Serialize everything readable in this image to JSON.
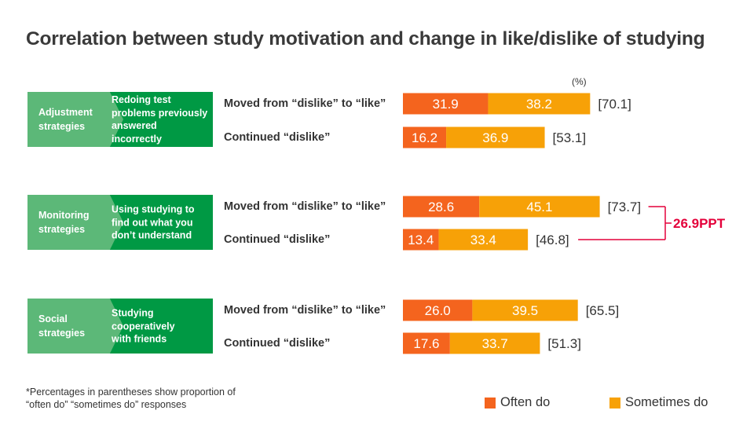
{
  "title": "Correlation between study motivation and change in like/dislike of studying",
  "unit": "(%)",
  "colors": {
    "often": "#f4641e",
    "sometimes": "#f7a107",
    "group_dark": "#009944",
    "group_light": "#5cb878",
    "highlight": "#e4003a"
  },
  "groups": [
    {
      "name_line1": "Adjustment",
      "name_line2": "strategies",
      "desc": [
        "Redoing test",
        "problems previously",
        "answered incorrectly"
      ]
    },
    {
      "name_line1": "Monitoring",
      "name_line2": "strategies",
      "desc": [
        "Using studying to",
        "find out what you",
        "don’t understand"
      ]
    },
    {
      "name_line1": "Social",
      "name_line2": "strategies",
      "desc": [
        "Studying",
        "cooperatively",
        "with friends"
      ]
    }
  ],
  "row_labels": {
    "moved": "Moved from “dislike” to “like”",
    "continued": "Continued “dislike”"
  },
  "chart_data": {
    "type": "bar",
    "orientation": "horizontal",
    "stacked": true,
    "unit": "(%)",
    "categories": [
      "Adjustment strategies - Moved from “dislike” to “like”",
      "Adjustment strategies - Continued “dislike”",
      "Monitoring strategies - Moved from “dislike” to “like”",
      "Monitoring strategies - Continued “dislike”",
      "Social strategies - Moved from “dislike” to “like”",
      "Social strategies - Continued “dislike”"
    ],
    "series": [
      {
        "name": "Often do",
        "values": [
          31.9,
          16.2,
          28.6,
          13.4,
          26.0,
          17.6
        ],
        "labels": [
          "31.9",
          "16.2",
          "28.6",
          "13.4",
          "26.0",
          "17.6"
        ]
      },
      {
        "name": "Sometimes do",
        "values": [
          38.2,
          36.9,
          45.1,
          33.4,
          39.5,
          33.7
        ],
        "labels": [
          "38.2",
          "36.9",
          "45.1",
          "33.4",
          "39.5",
          "33.7"
        ]
      }
    ],
    "totals": [
      "70.1",
      "53.1",
      "73.7",
      "46.8",
      "65.5",
      "51.3"
    ],
    "total_bracket": [
      "[",
      "]"
    ],
    "annotation": {
      "text": "26.9PPT",
      "between": [
        2,
        3
      ]
    },
    "legend": {
      "position": "bottom-right",
      "entries": [
        "Often do",
        "Sometimes do"
      ]
    }
  },
  "footnote": [
    "*Percentages in parentheses show proportion of",
    "“often do” “sometimes do” responses"
  ]
}
